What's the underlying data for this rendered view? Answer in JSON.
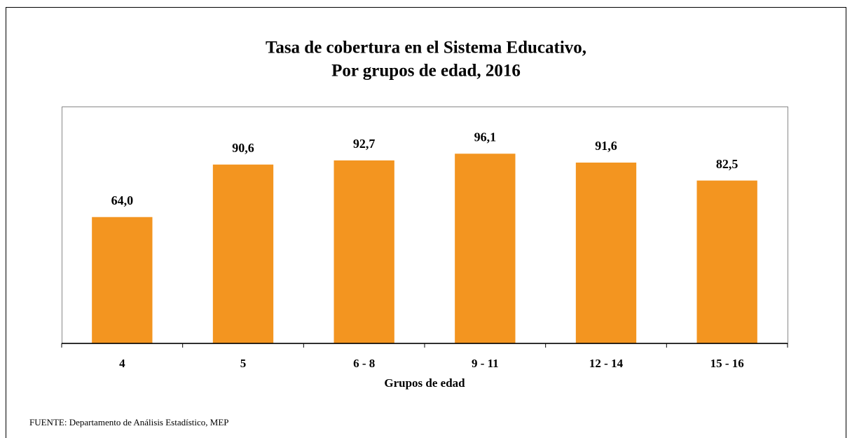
{
  "chart_data": {
    "type": "bar",
    "title": [
      "Tasa de cobertura en el Sistema Educativo,",
      "Por grupos de edad, 2016"
    ],
    "x_label": "Grupos de edad",
    "categories": [
      "4",
      "5",
      "6 - 8",
      "9 - 11",
      "12 - 14",
      "15 - 16"
    ],
    "values": [
      64.0,
      90.6,
      92.7,
      96.1,
      91.6,
      82.5
    ],
    "value_labels": [
      "64,0",
      "90,6",
      "92,7",
      "96,1",
      "91,6",
      "82,5"
    ],
    "color": "#f39520",
    "ylim": [
      0,
      120
    ],
    "source": "FUENTE:  Departamento de Análisis Estadístico, MEP"
  }
}
